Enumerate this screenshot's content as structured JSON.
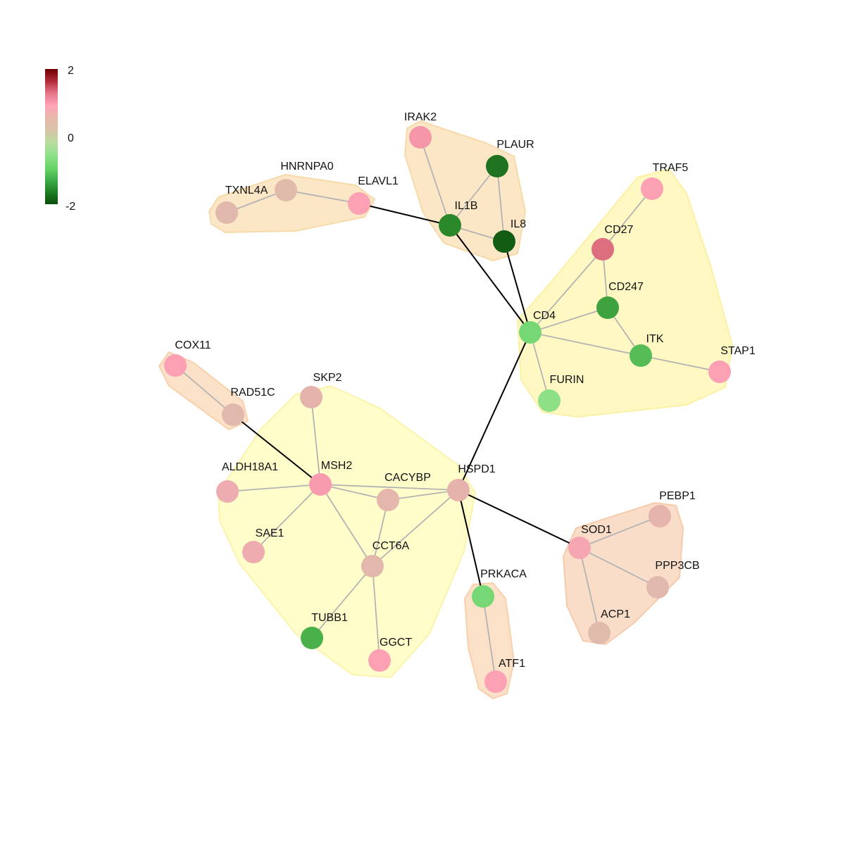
{
  "legend": {
    "max_label": "2",
    "mid_label": "0",
    "min_label": "-2",
    "gradient_colors": [
      "#6b0000",
      "#b32b3a",
      "#e8788c",
      "#ffa3b8",
      "#e6b8a8",
      "#d8c4a6",
      "#b8dea0",
      "#8ee08a",
      "#6ad66a",
      "#3fb04a",
      "#1f7f25",
      "#0b4d0b"
    ]
  },
  "modules": [
    {
      "id": "m1",
      "color": "#fbe5c2",
      "stroke": "#f7d9a6",
      "members": [
        "TXNL4A",
        "HNRNPA0",
        "ELAVL1"
      ]
    },
    {
      "id": "m2",
      "color": "#fbe5c2",
      "stroke": "#f7d9a6",
      "members": [
        "IRAK2",
        "PLAUR",
        "IL1B",
        "IL8"
      ]
    },
    {
      "id": "m3",
      "color": "#fff8bf",
      "stroke": "#fbf0a0",
      "members": [
        "TRAF5",
        "CD27",
        "CD247",
        "CD4",
        "ITK",
        "STAP1",
        "FURIN"
      ]
    },
    {
      "id": "m4",
      "color": "#fbe0c6",
      "stroke": "#f8cfa8",
      "members": [
        "COX11",
        "RAD51C"
      ]
    },
    {
      "id": "m5",
      "color": "#fffdc8",
      "stroke": "#fbf3a8",
      "members": [
        "SKP2",
        "MSH2",
        "ALDH18A1",
        "CACYBP",
        "HSPD1",
        "SAE1",
        "CCT6A",
        "TUBB1",
        "GGCT"
      ]
    },
    {
      "id": "m6",
      "color": "#fbe0c6",
      "stroke": "#f8cfa8",
      "members": [
        "PRKACA",
        "ATF1"
      ]
    },
    {
      "id": "m7",
      "color": "#fadcc6",
      "stroke": "#f6c9a8",
      "members": [
        "PEBP1",
        "SOD1",
        "PPP3CB",
        "ACP1"
      ]
    }
  ],
  "nodes": [
    {
      "id": "IRAK2",
      "label": "IRAK2",
      "value": 0.9
    },
    {
      "id": "PLAUR",
      "label": "PLAUR",
      "value": -1.75
    },
    {
      "id": "IL1B",
      "label": "IL1B",
      "value": -1.6
    },
    {
      "id": "IL8",
      "label": "IL8",
      "value": -1.9
    },
    {
      "id": "HNRNPA0",
      "label": "HNRNPA0",
      "value": 0.25
    },
    {
      "id": "TXNL4A",
      "label": "TXNL4A",
      "value": 0.3
    },
    {
      "id": "ELAVL1",
      "label": "ELAVL1",
      "value": 0.8
    },
    {
      "id": "TRAF5",
      "label": "TRAF5",
      "value": 0.8
    },
    {
      "id": "CD27",
      "label": "CD27",
      "value": 1.3
    },
    {
      "id": "CD247",
      "label": "CD247",
      "value": -1.4
    },
    {
      "id": "CD4",
      "label": "CD4",
      "value": -0.9
    },
    {
      "id": "ITK",
      "label": "ITK",
      "value": -1.2
    },
    {
      "id": "STAP1",
      "label": "STAP1",
      "value": 0.8
    },
    {
      "id": "FURIN",
      "label": "FURIN",
      "value": -0.6
    },
    {
      "id": "COX11",
      "label": "COX11",
      "value": 0.8
    },
    {
      "id": "RAD51C",
      "label": "RAD51C",
      "value": 0.3
    },
    {
      "id": "SKP2",
      "label": "SKP2",
      "value": 0.5
    },
    {
      "id": "ALDH18A1",
      "label": "ALDH18A1",
      "value": 0.6
    },
    {
      "id": "MSH2",
      "label": "MSH2",
      "value": 0.85
    },
    {
      "id": "CACYBP",
      "label": "CACYBP",
      "value": 0.4
    },
    {
      "id": "HSPD1",
      "label": "HSPD1",
      "value": 0.5
    },
    {
      "id": "SAE1",
      "label": "SAE1",
      "value": 0.6
    },
    {
      "id": "CCT6A",
      "label": "CCT6A",
      "value": 0.35
    },
    {
      "id": "TUBB1",
      "label": "TUBB1",
      "value": -1.3
    },
    {
      "id": "GGCT",
      "label": "GGCT",
      "value": 0.8
    },
    {
      "id": "PRKACA",
      "label": "PRKACA",
      "value": -0.9
    },
    {
      "id": "ATF1",
      "label": "ATF1",
      "value": 0.8
    },
    {
      "id": "PEBP1",
      "label": "PEBP1",
      "value": 0.45
    },
    {
      "id": "SOD1",
      "label": "SOD1",
      "value": 0.7
    },
    {
      "id": "PPP3CB",
      "label": "PPP3CB",
      "value": 0.3
    },
    {
      "id": "ACP1",
      "label": "ACP1",
      "value": 0.25
    }
  ],
  "edges": [
    {
      "source": "IRAK2",
      "target": "IL1B",
      "type": "intra"
    },
    {
      "source": "PLAUR",
      "target": "IL1B",
      "type": "intra"
    },
    {
      "source": "PLAUR",
      "target": "IL8",
      "type": "intra"
    },
    {
      "source": "IL1B",
      "target": "IL8",
      "type": "intra"
    },
    {
      "source": "TXNL4A",
      "target": "HNRNPA0",
      "type": "intra"
    },
    {
      "source": "HNRNPA0",
      "target": "ELAVL1",
      "type": "intra"
    },
    {
      "source": "TRAF5",
      "target": "CD27",
      "type": "intra"
    },
    {
      "source": "CD27",
      "target": "CD247",
      "type": "intra"
    },
    {
      "source": "CD27",
      "target": "CD4",
      "type": "intra"
    },
    {
      "source": "CD247",
      "target": "CD4",
      "type": "intra"
    },
    {
      "source": "CD247",
      "target": "ITK",
      "type": "intra"
    },
    {
      "source": "CD4",
      "target": "ITK",
      "type": "intra"
    },
    {
      "source": "ITK",
      "target": "STAP1",
      "type": "intra"
    },
    {
      "source": "CD4",
      "target": "FURIN",
      "type": "intra"
    },
    {
      "source": "COX11",
      "target": "RAD51C",
      "type": "intra"
    },
    {
      "source": "SKP2",
      "target": "MSH2",
      "type": "intra"
    },
    {
      "source": "ALDH18A1",
      "target": "MSH2",
      "type": "intra"
    },
    {
      "source": "MSH2",
      "target": "CACYBP",
      "type": "intra"
    },
    {
      "source": "MSH2",
      "target": "HSPD1",
      "type": "intra"
    },
    {
      "source": "MSH2",
      "target": "SAE1",
      "type": "intra"
    },
    {
      "source": "MSH2",
      "target": "CCT6A",
      "type": "intra"
    },
    {
      "source": "CACYBP",
      "target": "HSPD1",
      "type": "intra"
    },
    {
      "source": "CACYBP",
      "target": "CCT6A",
      "type": "intra"
    },
    {
      "source": "HSPD1",
      "target": "CCT6A",
      "type": "intra"
    },
    {
      "source": "CCT6A",
      "target": "TUBB1",
      "type": "intra"
    },
    {
      "source": "CCT6A",
      "target": "GGCT",
      "type": "intra"
    },
    {
      "source": "PRKACA",
      "target": "ATF1",
      "type": "intra"
    },
    {
      "source": "SOD1",
      "target": "PEBP1",
      "type": "intra"
    },
    {
      "source": "SOD1",
      "target": "PPP3CB",
      "type": "intra"
    },
    {
      "source": "SOD1",
      "target": "ACP1",
      "type": "intra"
    },
    {
      "source": "ELAVL1",
      "target": "IL1B",
      "type": "inter"
    },
    {
      "source": "IL1B",
      "target": "CD4",
      "type": "inter"
    },
    {
      "source": "IL8",
      "target": "CD4",
      "type": "inter"
    },
    {
      "source": "CD4",
      "target": "HSPD1",
      "type": "inter"
    },
    {
      "source": "RAD51C",
      "target": "MSH2",
      "type": "inter"
    },
    {
      "source": "HSPD1",
      "target": "SOD1",
      "type": "inter"
    },
    {
      "source": "HSPD1",
      "target": "PRKACA",
      "type": "inter"
    }
  ],
  "colors": {
    "intra_edge": "#b3b3b3",
    "inter_edge": "#000000"
  }
}
